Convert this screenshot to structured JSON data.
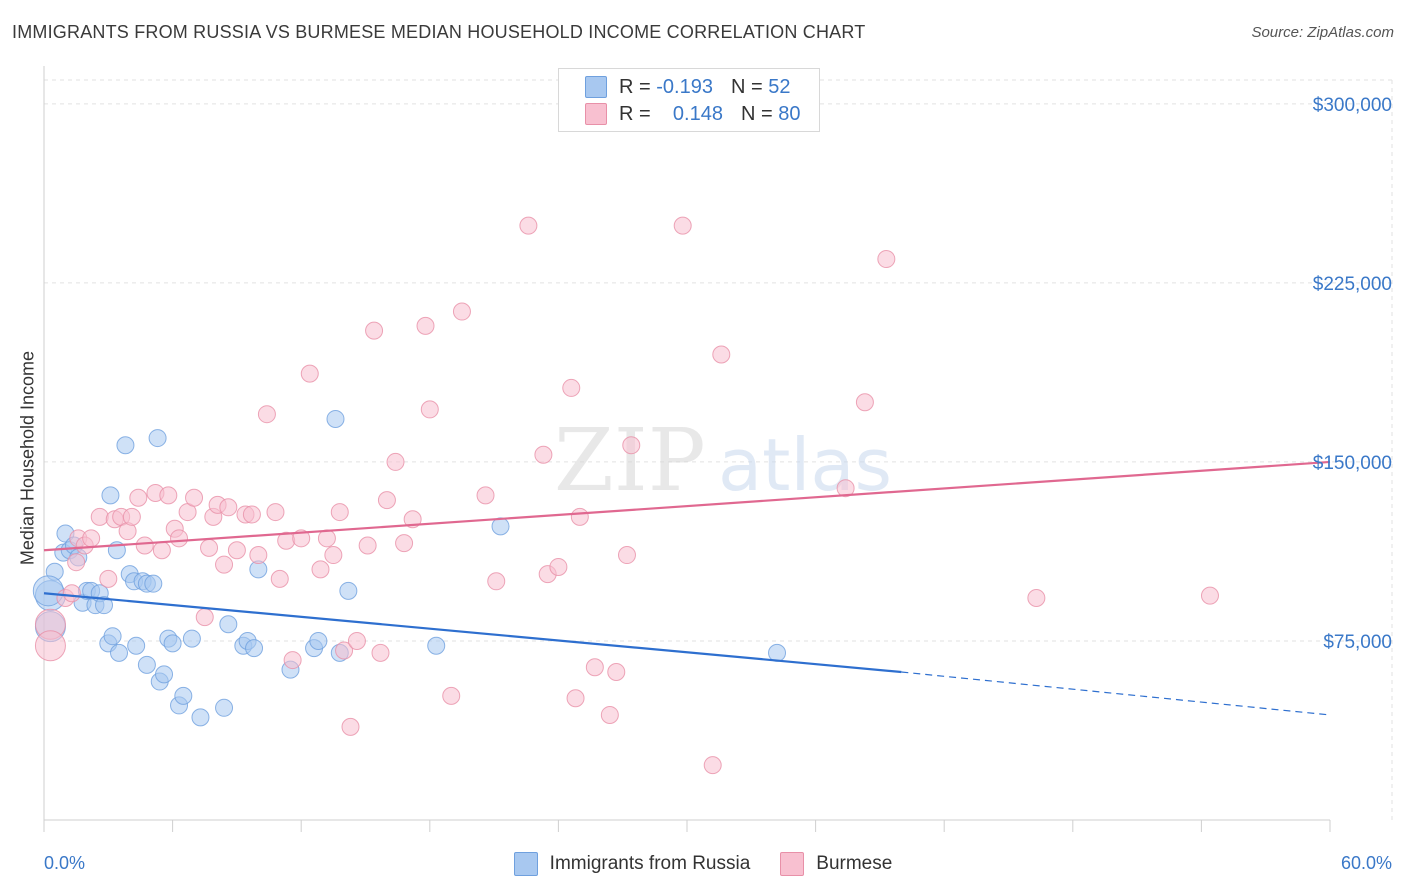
{
  "header": {
    "title": "IMMIGRANTS FROM RUSSIA VS BURMESE MEDIAN HOUSEHOLD INCOME CORRELATION CHART",
    "source": "Source: ZipAtlas.com"
  },
  "watermark": {
    "zip": "ZIP",
    "atlas": "atlas"
  },
  "legend_top": [
    {
      "r_label": "R =",
      "r_value": "-0.193",
      "n_label": "N =",
      "n_value": "52",
      "color": "#a8c8f0",
      "edge": "#6fa0de"
    },
    {
      "r_label": "R =",
      "r_value": "0.148",
      "n_label": "N =",
      "n_value": "80",
      "color": "#f8c0d0",
      "edge": "#e890a8"
    }
  ],
  "legend_bottom": [
    {
      "label": "Immigrants from Russia",
      "color": "#a8c8f0",
      "edge": "#6fa0de"
    },
    {
      "label": "Burmese",
      "color": "#f8c0d0",
      "edge": "#e890a8"
    }
  ],
  "chart_data": {
    "type": "scatter",
    "title": "IMMIGRANTS FROM RUSSIA VS BURMESE MEDIAN HOUSEHOLD INCOME CORRELATION CHART",
    "xlabel": "",
    "ylabel": "Median Household Income",
    "xlim": [
      0,
      60
    ],
    "ylim": [
      0,
      310000
    ],
    "x_tick_labels": [
      "0.0%",
      "60.0%"
    ],
    "y_ticks": [
      75000,
      150000,
      225000,
      300000
    ],
    "y_tick_labels": [
      "$75,000",
      "$150,000",
      "$225,000",
      "$300,000"
    ],
    "grid": true,
    "legend_position": "top-center",
    "series": [
      {
        "name": "Immigrants from Russia",
        "color": "#a8c8f0",
        "edge": "#6fa0de",
        "line_color": "#2e6fcf",
        "trend": {
          "x0": 0,
          "y0": 95000,
          "x1": 40,
          "y1": 62000,
          "dashed_to": 60,
          "dashed_y": 44000
        },
        "points": [
          [
            0.3,
            94000
          ],
          [
            0.3,
            81000
          ],
          [
            0.5,
            104000
          ],
          [
            0.9,
            112000
          ],
          [
            1.0,
            120000
          ],
          [
            1.2,
            113000
          ],
          [
            1.4,
            115000
          ],
          [
            1.6,
            110000
          ],
          [
            1.8,
            91000
          ],
          [
            2.0,
            96000
          ],
          [
            2.2,
            96000
          ],
          [
            2.4,
            90000
          ],
          [
            2.6,
            95000
          ],
          [
            2.8,
            90000
          ],
          [
            3.0,
            74000
          ],
          [
            3.1,
            136000
          ],
          [
            3.2,
            77000
          ],
          [
            3.4,
            113000
          ],
          [
            3.5,
            70000
          ],
          [
            3.8,
            157000
          ],
          [
            4.0,
            103000
          ],
          [
            4.2,
            100000
          ],
          [
            4.3,
            73000
          ],
          [
            4.6,
            100000
          ],
          [
            4.8,
            65000
          ],
          [
            4.8,
            99000
          ],
          [
            5.1,
            99000
          ],
          [
            5.3,
            160000
          ],
          [
            5.4,
            58000
          ],
          [
            5.6,
            61000
          ],
          [
            5.8,
            76000
          ],
          [
            6.0,
            74000
          ],
          [
            6.3,
            48000
          ],
          [
            6.5,
            52000
          ],
          [
            6.9,
            76000
          ],
          [
            7.3,
            43000
          ],
          [
            8.4,
            47000
          ],
          [
            8.6,
            82000
          ],
          [
            9.3,
            73000
          ],
          [
            9.5,
            75000
          ],
          [
            9.8,
            72000
          ],
          [
            10.0,
            105000
          ],
          [
            11.5,
            63000
          ],
          [
            12.6,
            72000
          ],
          [
            12.8,
            75000
          ],
          [
            13.6,
            168000
          ],
          [
            13.8,
            70000
          ],
          [
            14.2,
            96000
          ],
          [
            18.3,
            73000
          ],
          [
            21.3,
            123000
          ],
          [
            34.2,
            70000
          ],
          [
            0.2,
            96000
          ]
        ]
      },
      {
        "name": "Burmese",
        "color": "#f8c0d0",
        "edge": "#e890a8",
        "line_color": "#e06890",
        "trend": {
          "x0": 0,
          "y0": 113000,
          "x1": 60,
          "y1": 150000
        },
        "points": [
          [
            0.3,
            82000
          ],
          [
            0.3,
            73000
          ],
          [
            1.0,
            93000
          ],
          [
            1.3,
            95000
          ],
          [
            1.5,
            108000
          ],
          [
            1.6,
            118000
          ],
          [
            1.9,
            115000
          ],
          [
            2.2,
            118000
          ],
          [
            2.6,
            127000
          ],
          [
            3.0,
            101000
          ],
          [
            3.3,
            126000
          ],
          [
            3.6,
            127000
          ],
          [
            3.9,
            121000
          ],
          [
            4.1,
            127000
          ],
          [
            4.4,
            135000
          ],
          [
            4.7,
            115000
          ],
          [
            5.2,
            137000
          ],
          [
            5.5,
            113000
          ],
          [
            5.8,
            136000
          ],
          [
            6.1,
            122000
          ],
          [
            6.3,
            118000
          ],
          [
            6.7,
            129000
          ],
          [
            7.0,
            135000
          ],
          [
            7.5,
            85000
          ],
          [
            7.7,
            114000
          ],
          [
            7.9,
            127000
          ],
          [
            8.1,
            132000
          ],
          [
            8.4,
            107000
          ],
          [
            8.6,
            131000
          ],
          [
            9.0,
            113000
          ],
          [
            9.4,
            128000
          ],
          [
            9.7,
            128000
          ],
          [
            10.0,
            111000
          ],
          [
            10.4,
            170000
          ],
          [
            10.8,
            129000
          ],
          [
            11.0,
            101000
          ],
          [
            11.3,
            117000
          ],
          [
            11.6,
            67000
          ],
          [
            12.0,
            118000
          ],
          [
            12.4,
            187000
          ],
          [
            12.9,
            105000
          ],
          [
            13.2,
            118000
          ],
          [
            13.5,
            111000
          ],
          [
            13.8,
            129000
          ],
          [
            14.0,
            71000
          ],
          [
            14.3,
            39000
          ],
          [
            14.6,
            75000
          ],
          [
            15.1,
            115000
          ],
          [
            15.4,
            205000
          ],
          [
            15.7,
            70000
          ],
          [
            16.0,
            134000
          ],
          [
            16.4,
            150000
          ],
          [
            16.8,
            116000
          ],
          [
            17.2,
            126000
          ],
          [
            17.8,
            207000
          ],
          [
            18.0,
            172000
          ],
          [
            19.0,
            52000
          ],
          [
            19.5,
            213000
          ],
          [
            20.6,
            136000
          ],
          [
            21.1,
            100000
          ],
          [
            22.6,
            249000
          ],
          [
            23.3,
            153000
          ],
          [
            23.5,
            103000
          ],
          [
            24.0,
            106000
          ],
          [
            24.6,
            181000
          ],
          [
            24.8,
            51000
          ],
          [
            25.0,
            127000
          ],
          [
            25.7,
            64000
          ],
          [
            26.4,
            44000
          ],
          [
            26.7,
            62000
          ],
          [
            27.2,
            111000
          ],
          [
            27.4,
            157000
          ],
          [
            29.8,
            249000
          ],
          [
            31.2,
            23000
          ],
          [
            31.6,
            195000
          ],
          [
            37.4,
            139000
          ],
          [
            38.3,
            175000
          ],
          [
            39.3,
            235000
          ],
          [
            46.3,
            93000
          ],
          [
            54.4,
            94000
          ]
        ]
      }
    ]
  }
}
